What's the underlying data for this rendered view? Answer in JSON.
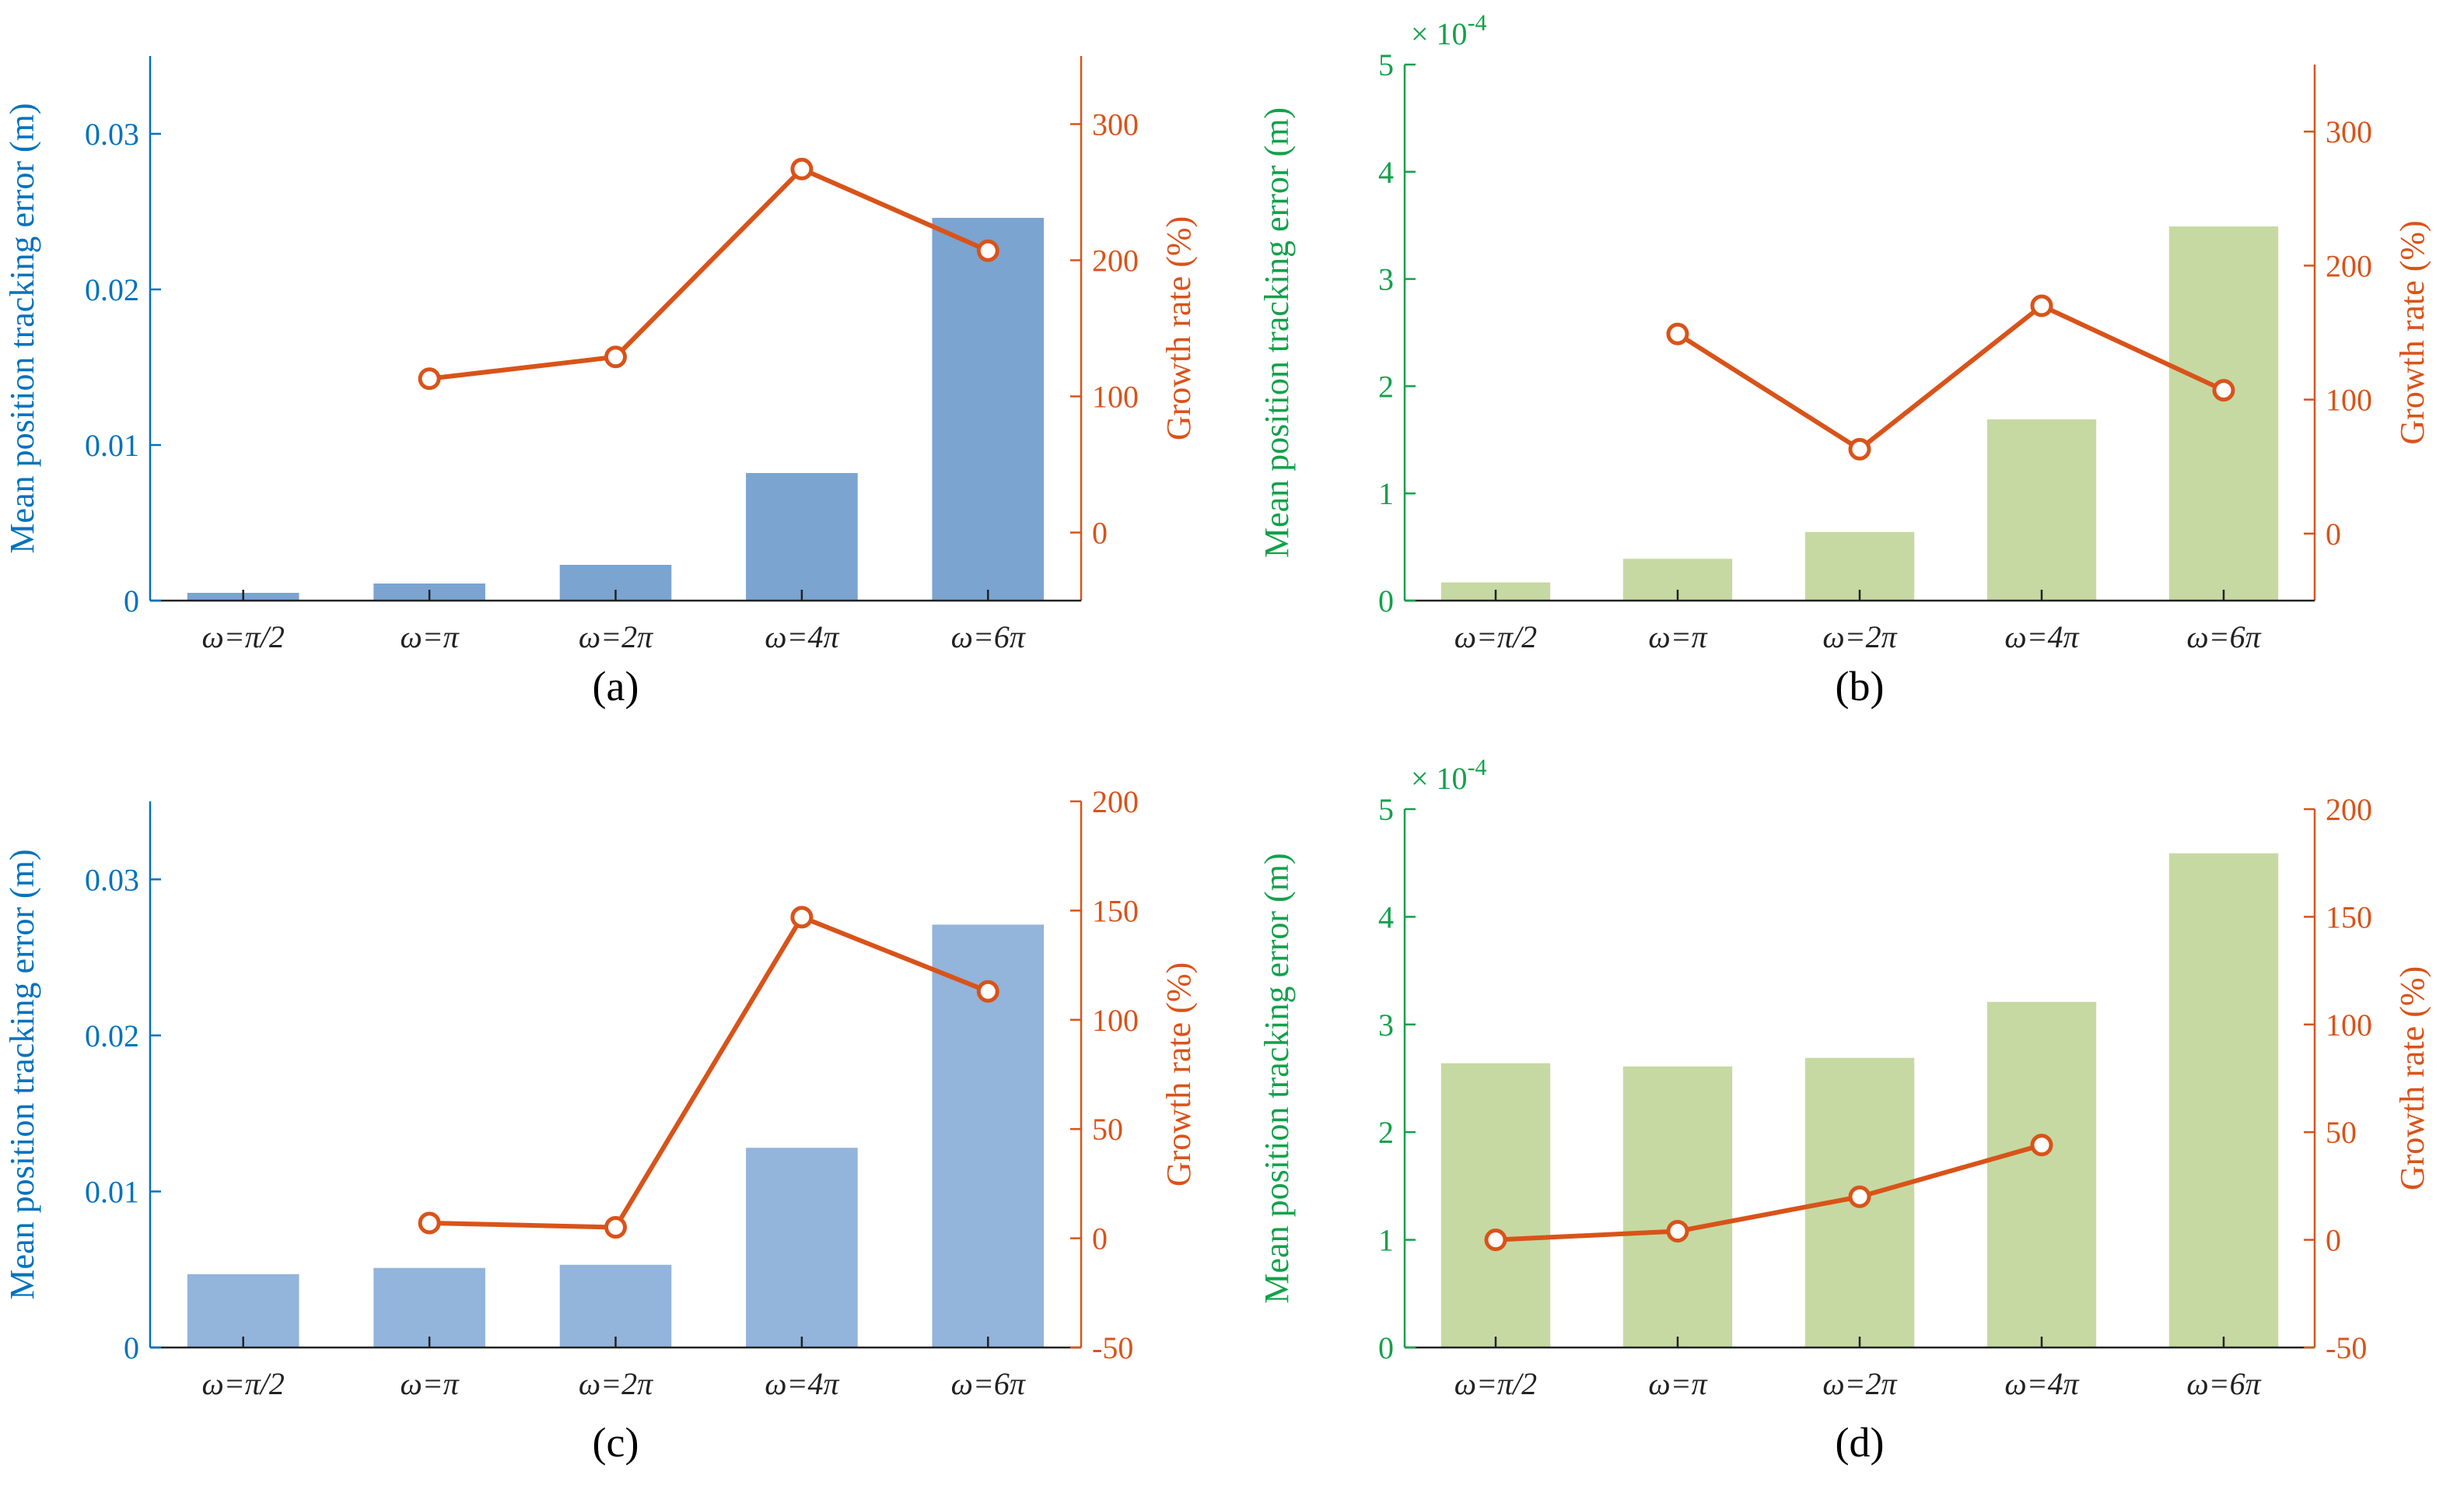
{
  "colors": {
    "blue_axis": "#0072BD",
    "green_axis": "#12A14A",
    "orange": "#D95319",
    "black": "#222222"
  },
  "chart_data": [
    {
      "type": "bar",
      "label": "(a)",
      "categories": [
        "ω=π/2",
        "ω=π",
        "ω=2π",
        "ω=4π",
        "ω=6π"
      ],
      "ylabel": "Mean position tracking error (m)",
      "ylabel_right": "Growth rate (%)",
      "ylim": [
        0,
        0.035
      ],
      "yticks": [
        "0",
        "0.01",
        "0.02",
        "0.03"
      ],
      "ytick_values": [
        0,
        0.01,
        0.02,
        0.03
      ],
      "ylim_right": [
        -50,
        350
      ],
      "yticks_right": [
        "0",
        "100",
        "200",
        "300"
      ],
      "ytick_values_right": [
        0,
        100,
        200,
        300
      ],
      "exponent": null,
      "bar_color": "#7BA4D1",
      "left_axis_color": "#0072BD",
      "series": [
        {
          "axis": "left",
          "kind": "bar",
          "values": [
            0.0005,
            0.0011,
            0.0023,
            0.0082,
            0.0246
          ]
        },
        {
          "axis": "right",
          "kind": "line",
          "values": [
            null,
            113,
            129,
            267,
            207
          ]
        }
      ]
    },
    {
      "type": "bar",
      "label": "(b)",
      "categories": [
        "ω=π/2",
        "ω=π",
        "ω=2π",
        "ω=4π",
        "ω=6π"
      ],
      "ylabel": "Mean position tracking error (m)",
      "ylabel_right": "Growth rate (%)",
      "ylim": [
        0,
        5
      ],
      "yticks": [
        "0",
        "1",
        "2",
        "3",
        "4",
        "5"
      ],
      "ytick_values": [
        0,
        1,
        2,
        3,
        4,
        5
      ],
      "ylim_right": [
        -50,
        350
      ],
      "yticks_right": [
        "0",
        "100",
        "200",
        "300"
      ],
      "ytick_values_right": [
        0,
        100,
        200,
        300
      ],
      "exponent": {
        "base": "× 10",
        "power": "-4"
      },
      "bar_color": "#C6D9A2",
      "left_axis_color": "#12A14A",
      "series": [
        {
          "axis": "left",
          "kind": "bar",
          "values": [
            0.17,
            0.39,
            0.64,
            1.69,
            3.49
          ]
        },
        {
          "axis": "right",
          "kind": "line",
          "values": [
            null,
            149,
            63,
            170,
            107
          ]
        }
      ]
    },
    {
      "type": "bar",
      "label": "(c)",
      "categories": [
        "ω=π/2",
        "ω=π",
        "ω=2π",
        "ω=4π",
        "ω=6π"
      ],
      "ylabel": "Mean position tracking error (m)",
      "ylabel_right": "Growth rate (%)",
      "ylim": [
        0,
        0.035
      ],
      "yticks": [
        "0",
        "0.01",
        "0.02",
        "0.03"
      ],
      "ytick_values": [
        0,
        0.01,
        0.02,
        0.03
      ],
      "ylim_right": [
        -50,
        200
      ],
      "yticks_right": [
        "-50",
        "0",
        "50",
        "100",
        "150",
        "200"
      ],
      "ytick_values_right": [
        -50,
        0,
        50,
        100,
        150,
        200
      ],
      "exponent": null,
      "bar_color": "#93B4DB",
      "left_axis_color": "#0072BD",
      "series": [
        {
          "axis": "left",
          "kind": "bar",
          "values": [
            0.0047,
            0.0051,
            0.0053,
            0.0128,
            0.0271
          ]
        },
        {
          "axis": "right",
          "kind": "line",
          "values": [
            null,
            7,
            5,
            147,
            113
          ]
        }
      ]
    },
    {
      "type": "bar",
      "label": "(d)",
      "categories": [
        "ω=π/2",
        "ω=π",
        "ω=2π",
        "ω=4π",
        "ω=6π"
      ],
      "ylabel": "Mean position tracking error (m)",
      "ylabel_right": "Growth rate (%)",
      "ylim": [
        0,
        5
      ],
      "yticks": [
        "0",
        "1",
        "2",
        "3",
        "4",
        "5"
      ],
      "ytick_values": [
        0,
        1,
        2,
        3,
        4,
        5
      ],
      "ylim_right": [
        -50,
        200
      ],
      "yticks_right": [
        "-50",
        "0",
        "50",
        "100",
        "150",
        "200"
      ],
      "ytick_values_right": [
        -50,
        0,
        50,
        100,
        150,
        200
      ],
      "exponent": {
        "base": "× 10",
        "power": "-4"
      },
      "bar_color": "#C6D9A2",
      "left_axis_color": "#12A14A",
      "series": [
        {
          "axis": "left",
          "kind": "bar",
          "values": [
            2.64,
            2.61,
            2.69,
            3.21,
            4.59
          ]
        },
        {
          "axis": "right",
          "kind": "line",
          "values": [
            0,
            4,
            20,
            44,
            null
          ]
        }
      ]
    }
  ]
}
